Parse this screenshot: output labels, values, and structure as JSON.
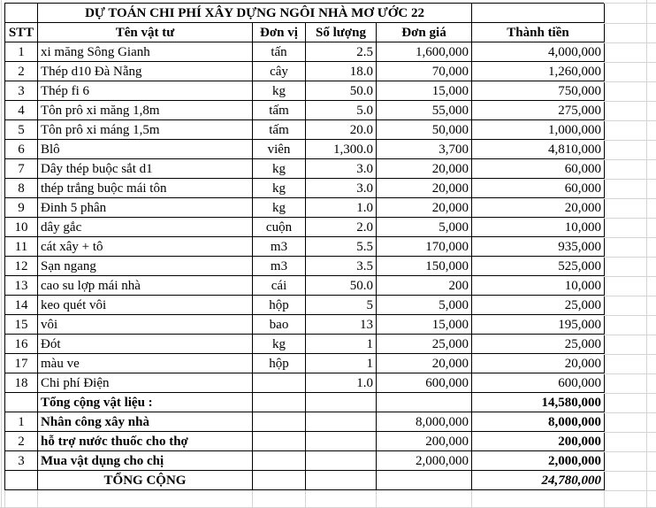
{
  "title": "DỰ TOÁN CHI PHÍ XÂY DỰNG NGÔI NHÀ MƠ ƯỚC 22",
  "columns": [
    "STT",
    "Tên vật tư",
    "Đơn vị",
    "Số lượng",
    "Đơn giá",
    "Thành tiền"
  ],
  "materials": [
    {
      "stt": "1",
      "name": "xi măng Sông Gianh",
      "unit": "tấn",
      "qty": "2.5",
      "unit_price": "1,600,000",
      "total": "4,000,000"
    },
    {
      "stt": "2",
      "name": "Thép d10 Đà Nẵng",
      "unit": "cây",
      "qty": "18.0",
      "unit_price": "70,000",
      "total": "1,260,000"
    },
    {
      "stt": "3",
      "name": "Thép fi 6",
      "unit": "kg",
      "qty": "50.0",
      "unit_price": "15,000",
      "total": "750,000"
    },
    {
      "stt": "4",
      "name": "Tôn prô xi măng 1,8m",
      "unit": "tấm",
      "qty": "5.0",
      "unit_price": "55,000",
      "total": "275,000"
    },
    {
      "stt": "5",
      "name": "Tôn prô xi máng 1,5m",
      "unit": "tấm",
      "qty": "20.0",
      "unit_price": "50,000",
      "total": "1,000,000"
    },
    {
      "stt": "6",
      "name": "Blô",
      "unit": "viên",
      "qty": "1,300.0",
      "unit_price": "3,700",
      "total": "4,810,000"
    },
    {
      "stt": "7",
      "name": "Dây thép buộc sắt d1",
      "unit": "kg",
      "qty": "3.0",
      "unit_price": "20,000",
      "total": "60,000"
    },
    {
      "stt": "8",
      "name": "thép trắng buộc mái tôn",
      "unit": "kg",
      "qty": "3.0",
      "unit_price": "20,000",
      "total": "60,000"
    },
    {
      "stt": "9",
      "name": "Đinh 5 phân",
      "unit": "kg",
      "qty": "1.0",
      "unit_price": "20,000",
      "total": "20,000"
    },
    {
      "stt": "10",
      "name": "dây gắc",
      "unit": "cuộn",
      "qty": "2.0",
      "unit_price": "5,000",
      "total": "10,000"
    },
    {
      "stt": "11",
      "name": "cát xây + tô",
      "unit": "m3",
      "qty": "5.5",
      "unit_price": "170,000",
      "total": "935,000"
    },
    {
      "stt": "12",
      "name": "Sạn ngang",
      "unit": "m3",
      "qty": "3.5",
      "unit_price": "150,000",
      "total": "525,000"
    },
    {
      "stt": "13",
      "name": "cao su lợp mái nhà",
      "unit": "cái",
      "qty": "50.0",
      "unit_price": "200",
      "total": "10,000"
    },
    {
      "stt": "14",
      "name": "keo quét vôi",
      "unit": "hộp",
      "qty": "5",
      "unit_price": "5,000",
      "total": "25,000"
    },
    {
      "stt": "15",
      "name": "vôi",
      "unit": "bao",
      "qty": "13",
      "unit_price": "15,000",
      "total": "195,000"
    },
    {
      "stt": "16",
      "name": "Đót",
      "unit": "kg",
      "qty": "1",
      "unit_price": "25,000",
      "total": "25,000"
    },
    {
      "stt": "17",
      "name": "màu ve",
      "unit": "hộp",
      "qty": "1",
      "unit_price": "20,000",
      "total": "20,000"
    },
    {
      "stt": "18",
      "name": "Chi phí Điện",
      "unit": "",
      "qty": "1.0",
      "unit_price": "600,000",
      "total": "600,000"
    }
  ],
  "materials_total": {
    "label": "Tổng cộng vật liệu :",
    "total": "14,580,000"
  },
  "extras": [
    {
      "stt": "1",
      "label": "Nhân công xây nhà",
      "unit_price": "8,000,000",
      "total": "8,000,000"
    },
    {
      "stt": "2",
      "label": "hỗ trợ nước thuốc cho thợ",
      "unit_price": "200,000",
      "total": "200,000"
    },
    {
      "stt": "3",
      "label": "Mua vật dụng cho chị",
      "unit_price": "2,000,000",
      "total": "2,000,000"
    }
  ],
  "grand_total": {
    "label": "TỔNG CỘNG",
    "total": "24,780,000"
  },
  "colors": {
    "border": "#000000",
    "gridline": "#d4d4d4",
    "background": "#ffffff",
    "text": "#000000"
  }
}
